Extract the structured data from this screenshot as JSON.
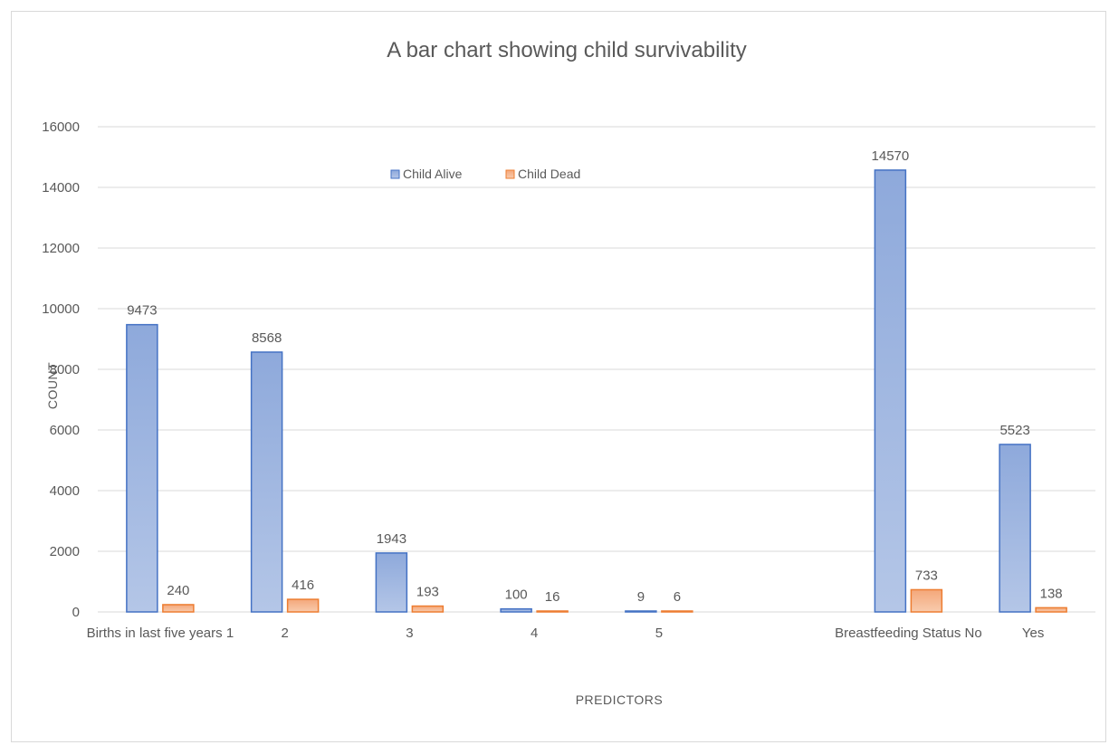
{
  "chart_data": {
    "type": "bar",
    "title": "A bar chart showing child survivability",
    "xlabel": "PREDICTORS",
    "ylabel": "COUNT",
    "ylim": [
      0,
      16000
    ],
    "yticks": [
      0,
      2000,
      4000,
      6000,
      8000,
      10000,
      12000,
      14000,
      16000
    ],
    "grid": true,
    "legend_position": "top",
    "categories": [
      "Births in last five years 1",
      "2",
      "3",
      "4",
      "5",
      "",
      "Breastfeeding Status No",
      "Yes"
    ],
    "series": [
      {
        "name": "Child  Alive",
        "color": "#4472c4",
        "values": [
          9473,
          8568,
          1943,
          100,
          9,
          null,
          14570,
          5523
        ]
      },
      {
        "name": "Child  Dead",
        "color": "#ed7d31",
        "values": [
          240,
          416,
          193,
          16,
          6,
          null,
          733,
          138
        ]
      }
    ]
  }
}
